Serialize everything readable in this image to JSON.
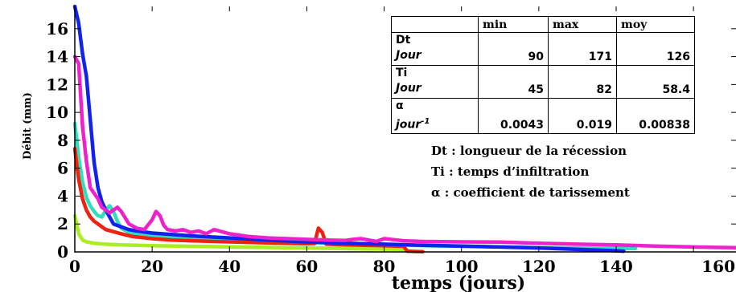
{
  "chart_data": {
    "type": "line",
    "title": "",
    "xlabel": "temps (jours)",
    "ylabel": "Débit (mm)",
    "xlim": [
      0,
      171
    ],
    "ylim": [
      0,
      17.6
    ],
    "xticks": [
      0,
      20,
      40,
      60,
      80,
      100,
      120,
      140,
      160
    ],
    "yticks": [
      0,
      2,
      4,
      6,
      8,
      10,
      12,
      14,
      16
    ],
    "grid": false,
    "series": [
      {
        "color": "#aaee22",
        "x": [
          0,
          1,
          2,
          3,
          5,
          8,
          12,
          20,
          30,
          45,
          60,
          75,
          85
        ],
        "y": [
          2.6,
          1.3,
          0.85,
          0.72,
          0.62,
          0.55,
          0.5,
          0.45,
          0.4,
          0.34,
          0.28,
          0.22,
          0.18
        ]
      },
      {
        "color": "#33ddbb",
        "x": [
          0,
          1,
          2,
          3,
          4,
          5,
          6,
          7,
          8,
          9,
          10,
          11,
          12,
          14,
          16,
          20,
          25,
          30,
          40,
          50,
          60,
          70,
          80,
          90,
          100,
          110,
          120,
          130,
          140,
          145
        ],
        "y": [
          9.2,
          6.8,
          5.0,
          3.9,
          3.3,
          2.9,
          2.6,
          2.5,
          3.0,
          3.3,
          2.9,
          2.2,
          1.7,
          1.4,
          1.25,
          1.1,
          1.0,
          0.95,
          0.85,
          0.75,
          0.68,
          0.6,
          0.52,
          0.45,
          0.4,
          0.35,
          0.3,
          0.27,
          0.25,
          0.24
        ]
      },
      {
        "color": "#ee2211",
        "x": [
          0,
          1,
          2,
          3,
          4,
          5,
          6,
          7,
          8,
          10,
          12,
          15,
          20,
          25,
          30,
          40,
          50,
          60,
          62,
          63,
          64,
          65,
          70,
          75,
          80,
          85,
          86,
          88,
          90
        ],
        "y": [
          7.4,
          5.2,
          3.8,
          3.0,
          2.5,
          2.2,
          2.0,
          1.8,
          1.6,
          1.45,
          1.3,
          1.1,
          0.95,
          0.85,
          0.8,
          0.72,
          0.65,
          0.58,
          0.6,
          1.7,
          1.4,
          0.55,
          0.5,
          0.48,
          0.45,
          0.4,
          0.05,
          0.03,
          0.02
        ]
      },
      {
        "color": "#1122ee",
        "x": [
          0,
          1,
          2,
          3,
          4,
          5,
          6,
          7,
          8,
          9,
          10,
          12,
          14,
          16,
          20,
          25,
          30,
          40,
          50,
          60,
          70,
          80,
          90,
          100,
          110,
          120,
          130,
          140,
          142
        ],
        "y": [
          17.6,
          16.4,
          14.2,
          12.6,
          9.5,
          6.4,
          4.6,
          3.6,
          3.0,
          2.5,
          2.0,
          1.8,
          1.6,
          1.5,
          1.35,
          1.25,
          1.15,
          1.0,
          0.85,
          0.72,
          0.62,
          0.55,
          0.48,
          0.42,
          0.35,
          0.28,
          0.18,
          0.08,
          0.05
        ]
      },
      {
        "color": "#ee22cc",
        "x": [
          0,
          1,
          2,
          3,
          4,
          5,
          6,
          7,
          8,
          9,
          10,
          11,
          12,
          14,
          16,
          18,
          20,
          21,
          22,
          23,
          24,
          26,
          28,
          30,
          32,
          34,
          36,
          40,
          45,
          50,
          55,
          60,
          65,
          70,
          72,
          74,
          76,
          78,
          80,
          85,
          90,
          100,
          110,
          120,
          130,
          140,
          150,
          160,
          171
        ],
        "y": [
          14.0,
          13.5,
          9.0,
          6.5,
          4.6,
          4.2,
          3.8,
          3.2,
          3.0,
          2.8,
          3.0,
          3.2,
          2.9,
          2.0,
          1.7,
          1.6,
          2.3,
          2.9,
          2.6,
          1.9,
          1.6,
          1.5,
          1.6,
          1.4,
          1.5,
          1.3,
          1.6,
          1.3,
          1.1,
          1.0,
          0.95,
          0.9,
          0.85,
          0.82,
          0.9,
          0.95,
          0.85,
          0.75,
          0.95,
          0.8,
          0.75,
          0.72,
          0.7,
          0.62,
          0.55,
          0.5,
          0.42,
          0.35,
          0.3
        ]
      }
    ],
    "annotations": [
      "Dt : longueur de la récession",
      "Ti : temps d’infiltration",
      "α : coefficient de tarissement"
    ],
    "table": {
      "headers": [
        "min",
        "max",
        "moy"
      ],
      "rows": [
        {
          "label": "Dt",
          "unit": "Jour",
          "values": [
            "90",
            "171",
            "126"
          ]
        },
        {
          "label": "Ti",
          "unit": "Jour",
          "values": [
            "45",
            "82",
            "58.4"
          ]
        },
        {
          "label": "α",
          "unit": "jour",
          "unit_exp": "-1",
          "values": [
            "0.0043",
            "0.019",
            "0.00838"
          ]
        }
      ]
    }
  }
}
